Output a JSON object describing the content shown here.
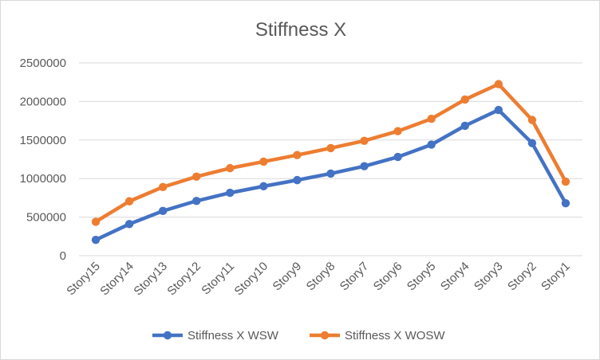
{
  "chart_data": {
    "type": "line",
    "title": "Stiffness X",
    "xlabel": "",
    "ylabel": "",
    "categories": [
      "Story15",
      "Story14",
      "Story13",
      "Story12",
      "Story11",
      "Story10",
      "Story9",
      "Story8",
      "Story7",
      "Story6",
      "Story5",
      "Story4",
      "Story3",
      "Story2",
      "Story1"
    ],
    "ylim": [
      0,
      2500000
    ],
    "yticks": [
      0,
      500000,
      1000000,
      1500000,
      2000000,
      2500000
    ],
    "ytick_labels": [
      "0",
      "500000",
      "1000000",
      "1500000",
      "2000000",
      "2500000"
    ],
    "grid": true,
    "legend_position": "bottom",
    "series": [
      {
        "name": "Stiffness X WSW",
        "color": "#4472c4",
        "values": [
          205000,
          410000,
          580000,
          710000,
          815000,
          900000,
          980000,
          1065000,
          1160000,
          1280000,
          1440000,
          1685000,
          1890000,
          1460000,
          680000
        ]
      },
      {
        "name": "Stiffness X WOSW",
        "color": "#ed7d31",
        "values": [
          440000,
          705000,
          890000,
          1025000,
          1135000,
          1220000,
          1305000,
          1395000,
          1490000,
          1615000,
          1775000,
          2025000,
          2225000,
          1760000,
          960000
        ]
      }
    ]
  }
}
